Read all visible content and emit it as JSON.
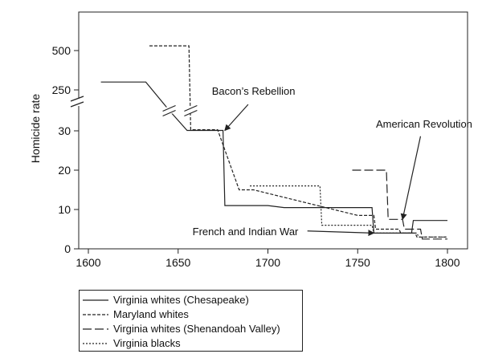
{
  "chart_data": {
    "type": "line",
    "xlabel": "",
    "ylabel": "Homicide rate",
    "xlim": [
      1600,
      1800
    ],
    "x_ticks": [
      1600,
      1650,
      1700,
      1750,
      1800
    ],
    "y_ticks": [
      0,
      10,
      20,
      30,
      250,
      500
    ],
    "y_axis_break": "between 30 and 250",
    "grid": false,
    "legend_position": "bottom-left",
    "series": [
      {
        "name": "Virginia whites (Chesapeake)",
        "style": "solid",
        "points": [
          [
            1607,
            300
          ],
          [
            1632,
            300
          ],
          [
            1645,
            140
          ],
          [
            1655,
            32
          ],
          [
            1675,
            32
          ],
          [
            1676,
            11
          ],
          [
            1700,
            11
          ],
          [
            1709,
            10.5
          ],
          [
            1758,
            10.5
          ],
          [
            1759,
            4
          ],
          [
            1780,
            4
          ],
          [
            1781,
            7.2
          ],
          [
            1800,
            7.2
          ]
        ]
      },
      {
        "name": "Maryland whites",
        "style": "dashed",
        "points": [
          [
            1634,
            530
          ],
          [
            1656,
            530
          ],
          [
            1657,
            36
          ],
          [
            1672,
            36
          ],
          [
            1684,
            15
          ],
          [
            1692,
            15
          ],
          [
            1750,
            8.5
          ],
          [
            1759,
            8.5
          ],
          [
            1760,
            5
          ],
          [
            1773,
            5
          ],
          [
            1774,
            4
          ],
          [
            1782,
            4
          ],
          [
            1783,
            3
          ],
          [
            1800,
            3
          ]
        ]
      },
      {
        "name": "Virginia whites (Shenandoah Valley)",
        "style": "longdash",
        "points": [
          [
            1747,
            20
          ],
          [
            1766,
            20
          ],
          [
            1767,
            7.5
          ],
          [
            1775,
            7.5
          ],
          [
            1776,
            5
          ],
          [
            1785,
            5
          ],
          [
            1786,
            2.5
          ],
          [
            1800,
            2.5
          ]
        ]
      },
      {
        "name": "Virginia blacks",
        "style": "dotted",
        "points": [
          [
            1690,
            16
          ],
          [
            1729,
            16
          ],
          [
            1730,
            6
          ],
          [
            1758,
            6
          ],
          [
            1759,
            4
          ],
          [
            1783,
            4
          ],
          [
            1784,
            3
          ],
          [
            1800,
            3
          ]
        ]
      }
    ],
    "annotations": [
      {
        "text": "Bacon’s Rebellion",
        "target": [
          1676,
          32
        ],
        "text_at": [
          1692,
          38
        ]
      },
      {
        "text": "American Revolution",
        "target": [
          1775,
          7.5
        ],
        "text_at": [
          1787,
          28
        ]
      },
      {
        "text": "French and Indian War",
        "target": [
          1759,
          4
        ],
        "text_at": [
          1723,
          2.5
        ]
      }
    ]
  },
  "legend": {
    "entries": [
      {
        "label": "Virginia whites (Chesapeake)",
        "style": "solid"
      },
      {
        "label": "Maryland whites",
        "style": "dashed"
      },
      {
        "label": "Virginia whites (Shenandoah Valley)",
        "style": "longdash"
      },
      {
        "label": "Virginia blacks",
        "style": "dotted"
      }
    ]
  }
}
